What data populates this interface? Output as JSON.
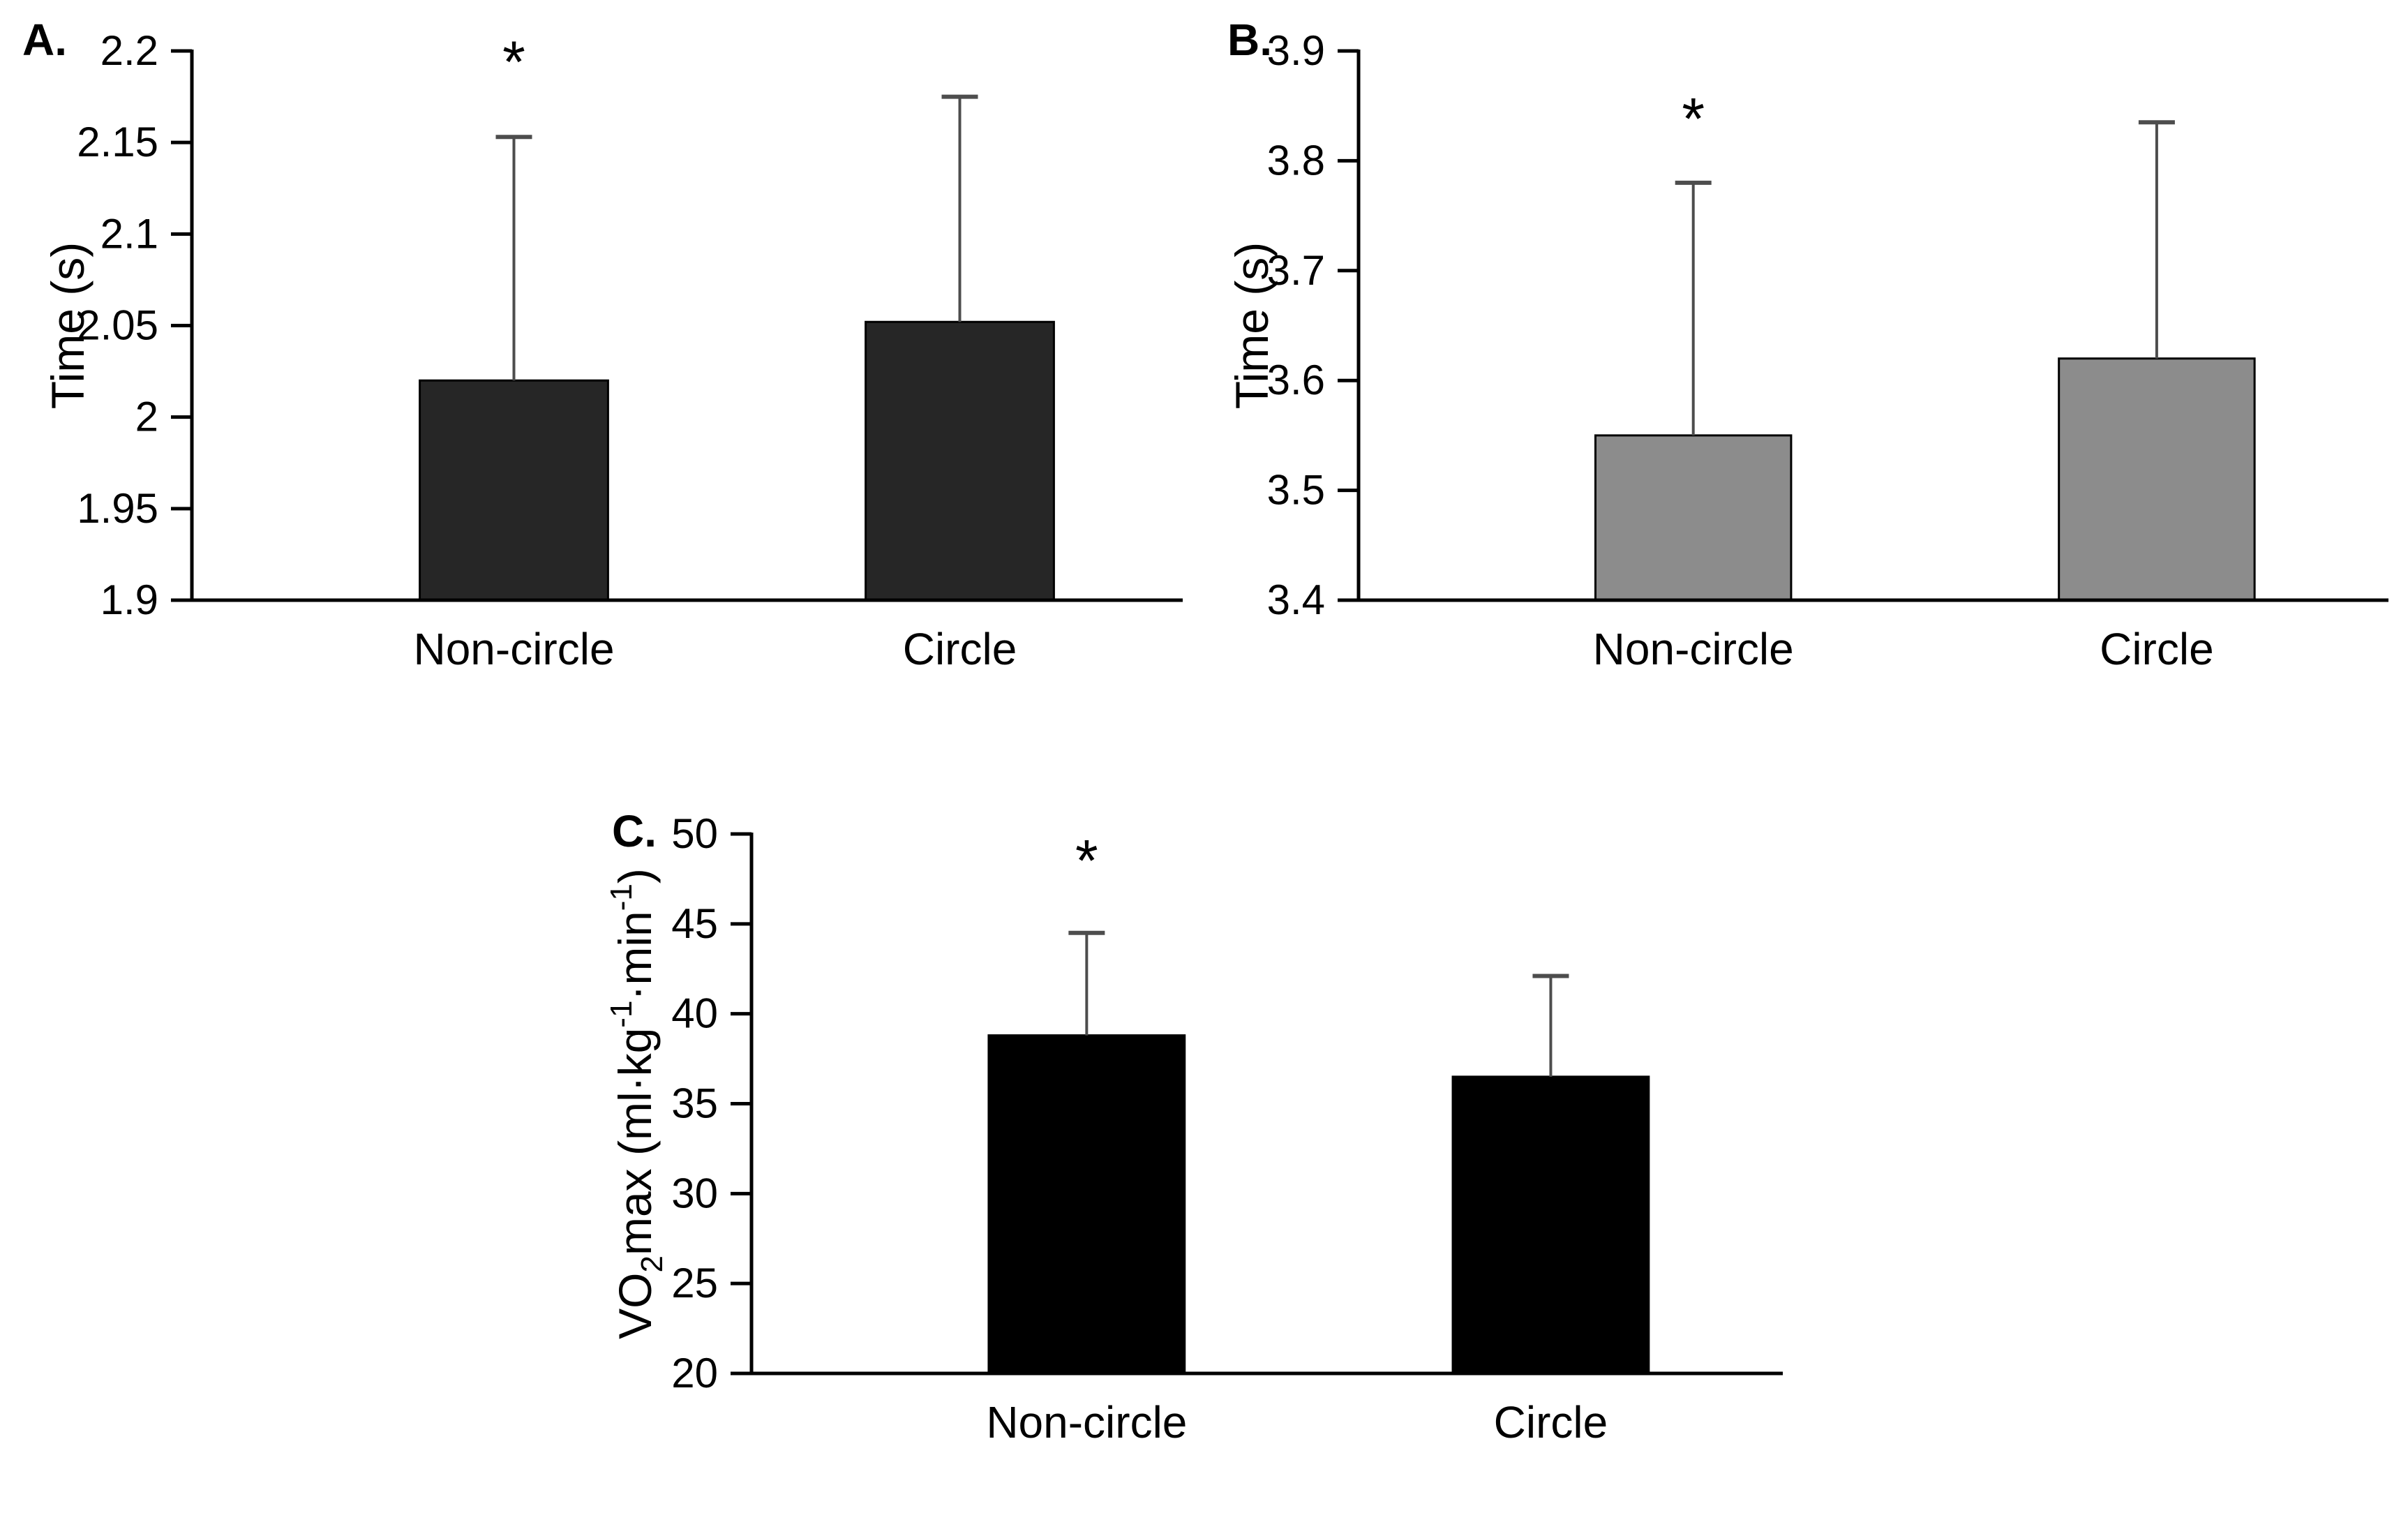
{
  "figure": {
    "background_color": "#ffffff",
    "axis_color": "#000000",
    "text_color": "#000000"
  },
  "chart_data": [
    {
      "type": "bar",
      "panel_label": "A.",
      "ylabel": "Time (s)",
      "ylabel_parts": [
        {
          "text": "Time (s)",
          "style": "normal"
        }
      ],
      "ylim": [
        1.9,
        2.2
      ],
      "grid": false,
      "legend": "none",
      "yticks": [
        {
          "value": 2.2,
          "label": "2.2"
        },
        {
          "value": 2.15,
          "label": "2.15"
        },
        {
          "value": 2.1,
          "label": "2.1"
        },
        {
          "value": 2.05,
          "label": "2.05"
        },
        {
          "value": 2.0,
          "label": "2"
        },
        {
          "value": 1.95,
          "label": "1.95"
        },
        {
          "value": 1.9,
          "label": "1.9"
        }
      ],
      "categories": [
        "Non-circle",
        "Circle"
      ],
      "values": [
        2.02,
        2.052
      ],
      "error_top": [
        2.153,
        2.175
      ],
      "significance": {
        "symbol": "*",
        "bar_index": 0,
        "y": 2.183
      },
      "bar_color": "#262626",
      "bar_stroke": "#000000",
      "error_color": "#4d4d4d"
    },
    {
      "type": "bar",
      "panel_label": "B.",
      "ylabel": "Time (s)",
      "ylabel_parts": [
        {
          "text": "Time (s)",
          "style": "normal"
        }
      ],
      "ylim": [
        3.4,
        3.9
      ],
      "grid": false,
      "legend": "none",
      "yticks": [
        {
          "value": 3.9,
          "label": "3.9"
        },
        {
          "value": 3.8,
          "label": "3.8"
        },
        {
          "value": 3.7,
          "label": "3.7"
        },
        {
          "value": 3.6,
          "label": "3.6"
        },
        {
          "value": 3.5,
          "label": "3.5"
        },
        {
          "value": 3.4,
          "label": "3.4"
        }
      ],
      "categories": [
        "Non-circle",
        "Circle"
      ],
      "values": [
        3.55,
        3.62
      ],
      "error_top": [
        3.78,
        3.835
      ],
      "significance": {
        "symbol": "*",
        "bar_index": 0,
        "y": 3.82
      },
      "bar_color": "#8c8c8c",
      "bar_stroke": "#000000",
      "error_color": "#4d4d4d"
    },
    {
      "type": "bar",
      "panel_label": "C.",
      "ylabel": "VO2max (ml·kg-1·min-1)",
      "ylabel_parts": [
        {
          "text": "VO",
          "style": "normal"
        },
        {
          "text": "2",
          "style": "sub"
        },
        {
          "text": "max (ml·kg",
          "style": "normal"
        },
        {
          "text": "-1",
          "style": "sup"
        },
        {
          "text": "·min",
          "style": "normal"
        },
        {
          "text": "-1",
          "style": "sup"
        },
        {
          "text": ")",
          "style": "normal"
        }
      ],
      "ylim": [
        20,
        50
      ],
      "grid": false,
      "legend": "none",
      "yticks": [
        {
          "value": 50,
          "label": "50"
        },
        {
          "value": 45,
          "label": "45"
        },
        {
          "value": 40,
          "label": "40"
        },
        {
          "value": 35,
          "label": "35"
        },
        {
          "value": 30,
          "label": "30"
        },
        {
          "value": 25,
          "label": "25"
        },
        {
          "value": 20,
          "label": "20"
        }
      ],
      "categories": [
        "Non-circle",
        "Circle"
      ],
      "values": [
        38.8,
        36.5
      ],
      "error_top": [
        44.5,
        42.1
      ],
      "significance": {
        "symbol": "*",
        "bar_index": 0,
        "y": 47.4
      },
      "bar_color": "#000000",
      "bar_stroke": "#000000",
      "error_color": "#4d4d4d"
    }
  ]
}
